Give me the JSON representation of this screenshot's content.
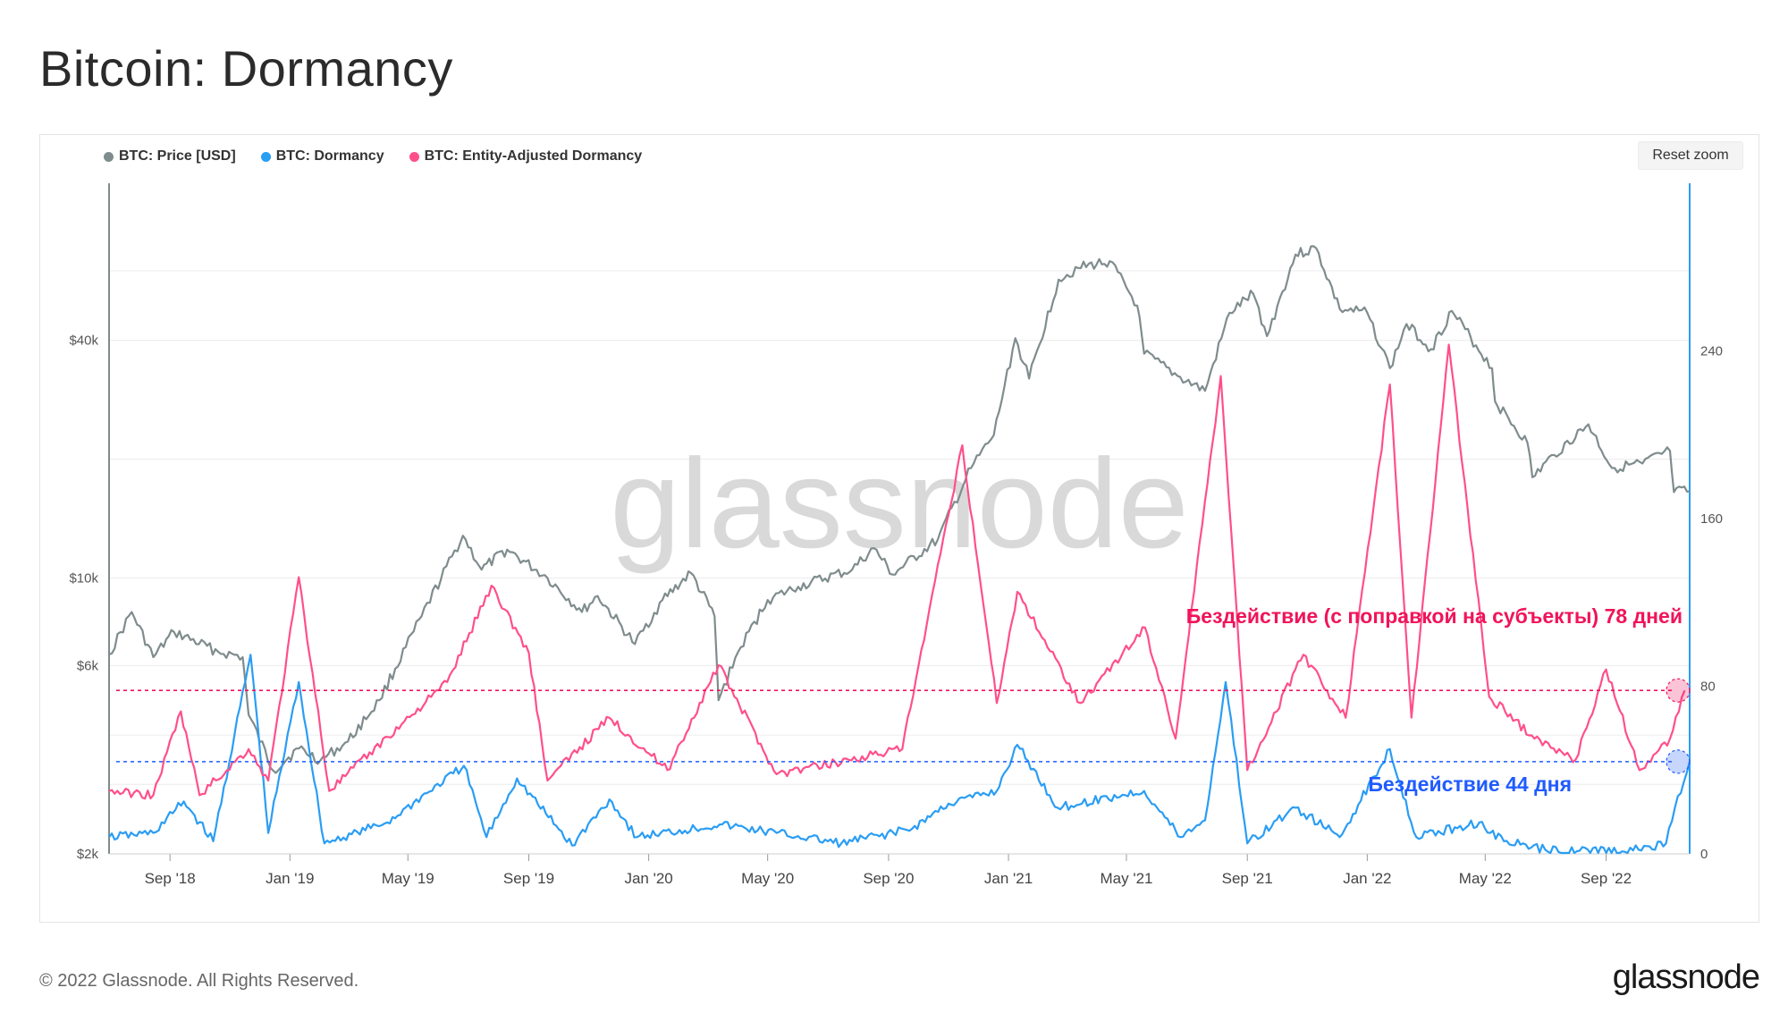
{
  "page": {
    "title": "Bitcoin: Dormancy"
  },
  "toolbar": {
    "reset_zoom": "Reset zoom"
  },
  "footer": {
    "copyright": "© 2022 Glassnode. All Rights Reserved.",
    "logo": "glassnode"
  },
  "colors": {
    "price": "#7f8c8d",
    "dormancy": "#2a9df4",
    "entity_dormancy": "#ff4f8b",
    "annotation_entity": "#f0145a",
    "annotation_dormancy": "#1f5bff"
  },
  "chart_data": {
    "type": "line",
    "title": "Bitcoin: Dormancy",
    "watermark": "glassnode",
    "legend": [
      {
        "name": "BTC: Price [USD]",
        "color": "#7f8c8d"
      },
      {
        "name": "BTC: Dormancy",
        "color": "#2a9df4"
      },
      {
        "name": "BTC: Entity-Adjusted Dormancy",
        "color": "#ff4f8b"
      }
    ],
    "x_ticks": [
      "Sep '18",
      "Jan '19",
      "May '19",
      "Sep '19",
      "Jan '20",
      "May '20",
      "Sep '20",
      "Jan '21",
      "May '21",
      "Sep '21",
      "Jan '22",
      "May '22",
      "Sep '22"
    ],
    "x_domain": {
      "start": "2018-07-01",
      "end": "2022-11-25"
    },
    "y_left": {
      "scale": "log",
      "ticks": [
        {
          "value": 2000,
          "label": "$2k"
        },
        {
          "value": 6000,
          "label": "$6k"
        },
        {
          "value": 10000,
          "label": "$10k"
        },
        {
          "value": 40000,
          "label": "$40k"
        }
      ],
      "range": [
        2000,
        100000
      ]
    },
    "y_right": {
      "scale": "linear",
      "ticks": [
        0,
        80,
        160,
        240
      ],
      "range": [
        0,
        320
      ]
    },
    "series": [
      {
        "name": "BTC: Price [USD]",
        "axis": "left",
        "points": [
          [
            "2018-07-01",
            6400
          ],
          [
            "2018-07-24",
            8200
          ],
          [
            "2018-08-15",
            6300
          ],
          [
            "2018-09-05",
            7300
          ],
          [
            "2018-10-20",
            6500
          ],
          [
            "2018-11-14",
            6300
          ],
          [
            "2018-11-20",
            4500
          ],
          [
            "2018-12-15",
            3250
          ],
          [
            "2019-01-10",
            3700
          ],
          [
            "2019-02-01",
            3450
          ],
          [
            "2019-03-01",
            3850
          ],
          [
            "2019-04-02",
            4900
          ],
          [
            "2019-05-15",
            8000
          ],
          [
            "2019-06-26",
            12800
          ],
          [
            "2019-07-15",
            10500
          ],
          [
            "2019-08-10",
            11800
          ],
          [
            "2019-09-20",
            10000
          ],
          [
            "2019-10-25",
            8200
          ],
          [
            "2019-11-10",
            9000
          ],
          [
            "2019-12-18",
            6800
          ],
          [
            "2020-01-15",
            8800
          ],
          [
            "2020-02-13",
            10300
          ],
          [
            "2020-03-08",
            8000
          ],
          [
            "2020-03-12",
            4900
          ],
          [
            "2020-04-01",
            6500
          ],
          [
            "2020-05-01",
            8800
          ],
          [
            "2020-06-01",
            9500
          ],
          [
            "2020-07-26",
            10500
          ],
          [
            "2020-08-17",
            11900
          ],
          [
            "2020-09-05",
            10200
          ],
          [
            "2020-10-21",
            12500
          ],
          [
            "2020-11-24",
            19000
          ],
          [
            "2020-12-17",
            23000
          ],
          [
            "2021-01-08",
            40500
          ],
          [
            "2021-01-22",
            32000
          ],
          [
            "2021-02-21",
            57000
          ],
          [
            "2021-03-13",
            61000
          ],
          [
            "2021-04-14",
            63500
          ],
          [
            "2021-05-12",
            49000
          ],
          [
            "2021-05-19",
            37000
          ],
          [
            "2021-06-22",
            32500
          ],
          [
            "2021-07-20",
            29800
          ],
          [
            "2021-08-14",
            47000
          ],
          [
            "2021-09-07",
            52500
          ],
          [
            "2021-09-21",
            41000
          ],
          [
            "2021-10-20",
            66000
          ],
          [
            "2021-11-10",
            68500
          ],
          [
            "2021-12-04",
            48000
          ],
          [
            "2022-01-01",
            47000
          ],
          [
            "2022-01-24",
            34000
          ],
          [
            "2022-02-10",
            44000
          ],
          [
            "2022-03-07",
            38000
          ],
          [
            "2022-03-28",
            47500
          ],
          [
            "2022-05-08",
            34000
          ],
          [
            "2022-05-11",
            28000
          ],
          [
            "2022-06-13",
            22000
          ],
          [
            "2022-06-18",
            18000
          ],
          [
            "2022-07-10",
            20500
          ],
          [
            "2022-08-14",
            24500
          ],
          [
            "2022-09-07",
            19000
          ],
          [
            "2022-10-08",
            19500
          ],
          [
            "2022-11-05",
            21000
          ],
          [
            "2022-11-09",
            16500
          ],
          [
            "2022-11-25",
            16600
          ]
        ]
      },
      {
        "name": "BTC: Dormancy",
        "axis": "right",
        "points": [
          [
            "2018-07-01",
            8
          ],
          [
            "2018-08-15",
            10
          ],
          [
            "2018-09-15",
            25
          ],
          [
            "2018-10-15",
            6
          ],
          [
            "2018-11-22",
            95
          ],
          [
            "2018-12-10",
            10
          ],
          [
            "2019-01-10",
            82
          ],
          [
            "2019-02-05",
            5
          ],
          [
            "2019-04-10",
            15
          ],
          [
            "2019-06-27",
            42
          ],
          [
            "2019-07-20",
            8
          ],
          [
            "2019-08-20",
            36
          ],
          [
            "2019-10-15",
            4
          ],
          [
            "2019-11-22",
            26
          ],
          [
            "2019-12-20",
            8
          ],
          [
            "2020-03-13",
            14
          ],
          [
            "2020-05-10",
            10
          ],
          [
            "2020-07-15",
            5
          ],
          [
            "2020-09-25",
            12
          ],
          [
            "2020-11-01",
            24
          ],
          [
            "2020-12-20",
            30
          ],
          [
            "2021-01-10",
            52
          ],
          [
            "2021-02-20",
            22
          ],
          [
            "2021-05-19",
            30
          ],
          [
            "2021-06-25",
            8
          ],
          [
            "2021-07-20",
            16
          ],
          [
            "2021-08-10",
            82
          ],
          [
            "2021-09-01",
            5
          ],
          [
            "2021-10-20",
            22
          ],
          [
            "2021-12-04",
            8
          ],
          [
            "2022-01-24",
            50
          ],
          [
            "2022-02-20",
            8
          ],
          [
            "2022-04-25",
            15
          ],
          [
            "2022-05-20",
            6
          ],
          [
            "2022-07-01",
            2
          ],
          [
            "2022-09-20",
            1
          ],
          [
            "2022-11-01",
            5
          ],
          [
            "2022-11-10",
            22
          ],
          [
            "2022-11-25",
            44
          ]
        ]
      },
      {
        "name": "BTC: Entity-Adjusted Dormancy",
        "axis": "right",
        "points": [
          [
            "2018-07-01",
            30
          ],
          [
            "2018-08-15",
            28
          ],
          [
            "2018-09-12",
            68
          ],
          [
            "2018-10-01",
            28
          ],
          [
            "2018-11-20",
            50
          ],
          [
            "2018-12-10",
            35
          ],
          [
            "2019-01-10",
            132
          ],
          [
            "2019-02-10",
            30
          ],
          [
            "2019-06-10",
            82
          ],
          [
            "2019-07-25",
            128
          ],
          [
            "2019-09-01",
            96
          ],
          [
            "2019-09-20",
            35
          ],
          [
            "2019-11-22",
            65
          ],
          [
            "2020-01-20",
            40
          ],
          [
            "2020-03-12",
            90
          ],
          [
            "2020-05-10",
            38
          ],
          [
            "2020-09-15",
            50
          ],
          [
            "2020-11-15",
            195
          ],
          [
            "2020-12-20",
            72
          ],
          [
            "2021-01-10",
            125
          ],
          [
            "2021-03-15",
            72
          ],
          [
            "2021-05-20",
            108
          ],
          [
            "2021-06-20",
            55
          ],
          [
            "2021-08-05",
            228
          ],
          [
            "2021-09-01",
            40
          ],
          [
            "2021-10-28",
            95
          ],
          [
            "2021-12-10",
            65
          ],
          [
            "2022-01-24",
            224
          ],
          [
            "2022-02-15",
            65
          ],
          [
            "2022-03-25",
            243
          ],
          [
            "2022-05-05",
            75
          ],
          [
            "2022-06-20",
            55
          ],
          [
            "2022-08-01",
            45
          ],
          [
            "2022-09-01",
            88
          ],
          [
            "2022-10-05",
            40
          ],
          [
            "2022-11-05",
            55
          ],
          [
            "2022-11-20",
            78
          ]
        ]
      }
    ],
    "reference_lines": [
      {
        "series": "BTC: Entity-Adjusted Dormancy",
        "value": 78,
        "color": "#f0145a",
        "label": "Бездействие (с поправкой на субъекты) 78 дней"
      },
      {
        "series": "BTC: Dormancy",
        "value": 44,
        "color": "#1f5bff",
        "label": "Бездействие 44 дня"
      }
    ]
  }
}
